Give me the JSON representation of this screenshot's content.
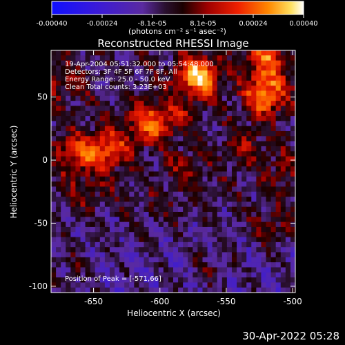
{
  "colorbar": {
    "ticks": [
      "-0.00040",
      "-0.00024",
      "-8.1e-05",
      "8.1e-05",
      "0.00024",
      "0.00040"
    ],
    "tick_values": [
      -0.0004,
      -0.00024,
      -8.1e-05,
      8.1e-05,
      0.00024,
      0.0004
    ],
    "range": [
      -0.0004,
      0.0004
    ],
    "units_label": "(photons cm⁻² s⁻¹ asec⁻²)"
  },
  "plot": {
    "title": "Reconstructed RHESSI Image",
    "info_lines": [
      "19-Apr-2004 05:51:32.000 to 05:54:48.000",
      "Detectors: 3F 4F 5F 6F 7F 8F, All",
      "Energy Range: 25.0 - 50.0 keV",
      "Clean     Total counts: 3.23E+03"
    ],
    "peak_label": "Position of Peak = [-571,66]"
  },
  "chart_data": {
    "type": "heatmap",
    "title": "Reconstructed RHESSI Image",
    "xlabel": "Heliocentric X (arcsec)",
    "ylabel": "Heliocentric Y (arcsec)",
    "xlim": [
      -682,
      -498
    ],
    "ylim": [
      -105,
      87
    ],
    "xticks": [
      -650,
      -600,
      -550,
      -500
    ],
    "yticks": [
      50,
      0,
      -50,
      -100
    ],
    "xtick_labels": [
      "-650",
      "-600",
      "-550",
      "-500"
    ],
    "ytick_labels": [
      "50",
      "0",
      "-50",
      "-100"
    ],
    "colorbar_range": [
      -0.0004,
      0.0004
    ],
    "peak": [
      -571,
      66
    ],
    "hotspots": [
      {
        "x": -571,
        "y": 66,
        "value": 0.0004
      },
      {
        "x": -520,
        "y": 52,
        "value": 0.00034
      },
      {
        "x": -520,
        "y": 80,
        "value": 0.00026
      },
      {
        "x": -640,
        "y": 8,
        "value": 0.00028
      },
      {
        "x": -610,
        "y": 28,
        "value": 0.00026
      },
      {
        "x": -665,
        "y": 5,
        "value": 0.00022
      },
      {
        "x": -675,
        "y": 60,
        "value": 0.00012
      },
      {
        "x": -590,
        "y": 35,
        "value": 0.00014
      },
      {
        "x": -580,
        "y": -8,
        "value": 0.0001
      },
      {
        "x": -535,
        "y": 10,
        "value": 0.00012
      },
      {
        "x": -505,
        "y": -8,
        "value": 0.0001
      },
      {
        "x": -655,
        "y": -25,
        "value": 8e-05
      },
      {
        "x": -515,
        "y": -55,
        "value": 0.00012
      },
      {
        "x": -600,
        "y": -40,
        "value": 6e-05
      },
      {
        "x": -560,
        "y": -85,
        "value": 8e-05
      },
      {
        "x": -670,
        "y": -85,
        "value": 8e-05
      }
    ],
    "background_level": -4e-05
  },
  "footer": {
    "timestamp": "30-Apr-2022 05:28"
  }
}
